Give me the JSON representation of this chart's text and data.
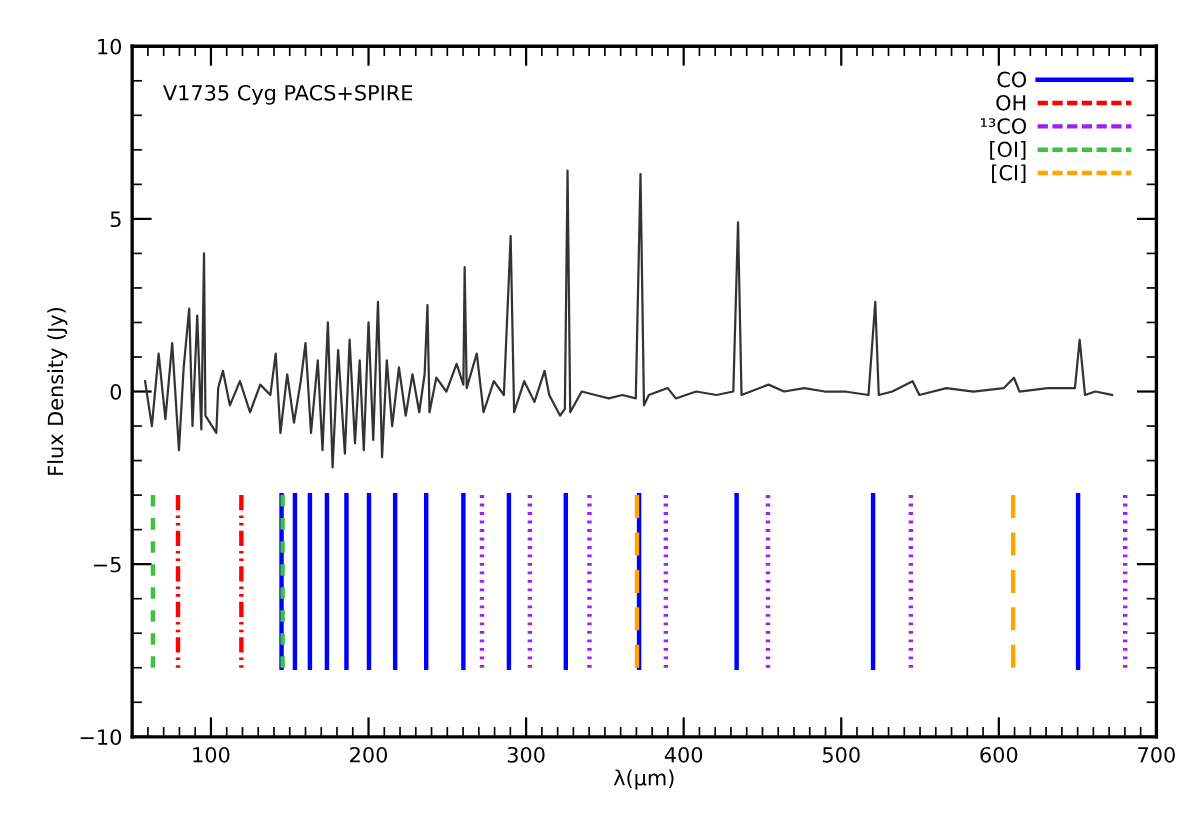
{
  "chart_data": {
    "type": "line",
    "title": "V1735 Cyg PACS+SPIRE",
    "xlabel": "λ(μm)",
    "ylabel": "Flux Density (Jy)",
    "xlim": [
      50,
      700
    ],
    "xticks": [
      100,
      200,
      300,
      400,
      500,
      600,
      700
    ],
    "ylim": [
      -10,
      10
    ],
    "yticks": [
      -10,
      -5,
      0,
      5,
      10
    ],
    "grid": false,
    "legend": "top right",
    "series": [
      {
        "color": "#333333",
        "line_style": "solid",
        "x": [
          58.2,
          62.5,
          66.8,
          71.1,
          75.4,
          79.7,
          82.7,
          86.2,
          88.3,
          91.3,
          93.9,
          95.6,
          96.5,
          103.4,
          104.6,
          107.6,
          112,
          118.4,
          124.8,
          131.3,
          137.7,
          141.1,
          144.1,
          148.4,
          152.7,
          157,
          160,
          163.5,
          167.8,
          170.8,
          174.2,
          177.2,
          180.7,
          185,
          188,
          191.4,
          194.4,
          197,
          200,
          203,
          206,
          208.6,
          211.6,
          215,
          219.3,
          223.6,
          227.9,
          232.2,
          235.6,
          237.4,
          238.7,
          243,
          249.4,
          255.9,
          260.2,
          261,
          262.3,
          268.7,
          273,
          279.5,
          285.9,
          290.2,
          292.4,
          298.8,
          305.3,
          311.7,
          314.7,
          321.6,
          324.6,
          326.3,
          328,
          335.3,
          343.9,
          352.5,
          361.1,
          369.6,
          372.6,
          374.8,
          377.9,
          389.9,
          395,
          407.9,
          420.8,
          431.5,
          434.5,
          436.7,
          453.9,
          463.7,
          476.6,
          489.5,
          502.3,
          517.3,
          521.6,
          523.8,
          532.4,
          545.3,
          549.6,
          566.7,
          583.9,
          603.2,
          609.6,
          613.1,
          631.1,
          648.3,
          651.3,
          654.7,
          661.2,
          671.9
        ],
        "values": [
          0.3,
          -1.0,
          1.1,
          -0.8,
          1.4,
          -1.7,
          0.7,
          2.4,
          -1.0,
          2.2,
          -1.1,
          4.0,
          -0.7,
          -1.2,
          0.1,
          0.6,
          -0.4,
          0.3,
          -0.6,
          0.2,
          -0.1,
          1.1,
          -1.2,
          0.5,
          -0.9,
          0.3,
          1.4,
          -1.2,
          0.9,
          -1.7,
          2.0,
          -2.2,
          1.2,
          -1.8,
          1.5,
          -1.5,
          0.9,
          -1.7,
          2.0,
          -1.4,
          2.6,
          -1.9,
          0.9,
          -1.0,
          0.7,
          -0.7,
          0.5,
          -0.6,
          0.5,
          2.5,
          -0.6,
          0.4,
          0.0,
          0.8,
          0.2,
          3.6,
          0.1,
          1.1,
          -0.6,
          0.3,
          -0.1,
          4.5,
          -0.6,
          0.3,
          -0.3,
          0.6,
          -0.1,
          -0.7,
          -0.5,
          6.4,
          -0.6,
          0.0,
          -0.1,
          -0.2,
          -0.1,
          -0.2,
          6.3,
          -0.4,
          -0.1,
          0.1,
          -0.2,
          0.0,
          -0.1,
          0.0,
          4.9,
          -0.1,
          0.2,
          0.0,
          0.1,
          0.0,
          0.0,
          -0.1,
          2.6,
          -0.1,
          0.0,
          0.3,
          -0.1,
          0.1,
          0.0,
          0.1,
          0.4,
          0.0,
          0.1,
          0.1,
          1.5,
          -0.1,
          0.0,
          -0.1
        ]
      },
      {
        "name": "CO",
        "color": "#0000ff",
        "line_style": "solid",
        "x": [
          144.8,
          144.8,
          null,
          153.3,
          153.3,
          null,
          162.8,
          162.8,
          null,
          173.6,
          173.6,
          null,
          186.0,
          186.0,
          null,
          200.3,
          200.3,
          null,
          216.9,
          216.9,
          null,
          236.6,
          236.6,
          null,
          260.2,
          260.2,
          null,
          289.1,
          289.1,
          null,
          325.2,
          325.2,
          null,
          371.7,
          371.7,
          null,
          433.6,
          433.6,
          null,
          520.2,
          520.2,
          null,
          650.3,
          650.3
        ],
        "values": [
          -3,
          -8,
          null,
          -3,
          -8,
          null,
          -3,
          -8,
          null,
          -3,
          -8,
          null,
          -3,
          -8,
          null,
          -3,
          -8,
          null,
          -3,
          -8,
          null,
          -3,
          -8,
          null,
          -3,
          -8,
          null,
          -3,
          -8,
          null,
          -3,
          -8,
          null,
          -3,
          -8,
          null,
          -3,
          -8,
          null,
          -3,
          -8,
          null,
          -3,
          -8
        ]
      },
      {
        "name": "OH",
        "color": "#ff0000",
        "line_style": "dashdotdot",
        "x": [
          79.1,
          79.1,
          null,
          119.3,
          119.3
        ],
        "values": [
          -3,
          -8,
          null,
          -3,
          -8
        ]
      },
      {
        "name": "¹³CO",
        "color": "#a020f0",
        "line_style": "dotted",
        "x": [
          272.0,
          272.0,
          null,
          302.4,
          302.4,
          null,
          340.2,
          340.2,
          null,
          388.7,
          388.7,
          null,
          453.5,
          453.5,
          null,
          544.2,
          544.2,
          null,
          680.2,
          680.2
        ],
        "values": [
          -3,
          -8,
          null,
          -3,
          -8,
          null,
          -3,
          -8,
          null,
          -3,
          -8,
          null,
          -3,
          -8,
          null,
          -3,
          -8,
          null,
          -3,
          -8
        ]
      },
      {
        "name": "[OI]",
        "color": "#40c040",
        "line_style": "dashed",
        "x": [
          63.2,
          63.2,
          null,
          145.5,
          145.5
        ],
        "values": [
          -3,
          -8,
          null,
          -3,
          -8
        ]
      },
      {
        "name": "[CI]",
        "color": "#ffa500",
        "line_style": "longdash",
        "x": [
          370.4,
          370.4,
          null,
          609.1,
          609.1
        ],
        "values": [
          -3,
          -8,
          null,
          -3,
          -8
        ]
      }
    ]
  }
}
